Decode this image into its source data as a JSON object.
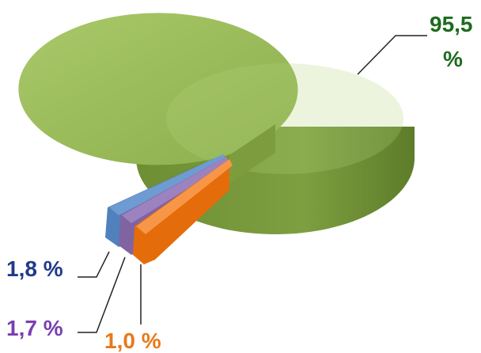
{
  "chart_data": {
    "type": "pie",
    "style": "3d-exploded",
    "slices": [
      {
        "label": "95,5 %",
        "value": 95.5,
        "color": "#9BBB59"
      },
      {
        "label": "1,8 %",
        "value": 1.8,
        "color": "#4F81BD"
      },
      {
        "label": "1,7 %",
        "value": 1.7,
        "color": "#8064A2"
      },
      {
        "label": "1,0 %",
        "value": 1.0,
        "color": "#F79646"
      }
    ],
    "label_colors": [
      "#1E6B1E",
      "#1F3A8A",
      "#7A3FB0",
      "#E8791A"
    ]
  },
  "labels": {
    "big_line1": "95,5",
    "big_line2": "%",
    "blue": "1,8 %",
    "purple": "1,7 %",
    "orange": "1,0 %"
  }
}
